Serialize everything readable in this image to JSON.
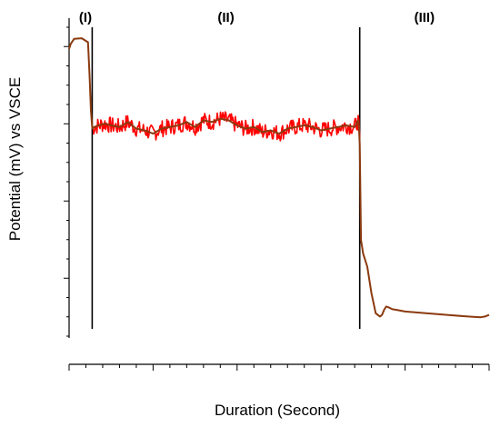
{
  "chart_data": {
    "type": "line",
    "title": "",
    "xlabel": "Duration (Second)",
    "ylabel": "Potential (mV) vs VSCE",
    "tick_labels_shown": false,
    "x_unit": "relative",
    "regions": [
      {
        "label": "(I)",
        "start": 0.0,
        "end": 0.055
      },
      {
        "label": "(II)",
        "start": 0.055,
        "end": 0.692
      },
      {
        "label": "(III)",
        "start": 0.692,
        "end": 1.0
      }
    ],
    "series": [
      {
        "color": "#8b3a0f",
        "noise_color": "#ff0000",
        "x": [
          0.0,
          0.004,
          0.012,
          0.03,
          0.045,
          0.049,
          0.052,
          0.055,
          0.056,
          0.06,
          0.07,
          0.085,
          0.1,
          0.12,
          0.14,
          0.16,
          0.18,
          0.2,
          0.22,
          0.24,
          0.26,
          0.28,
          0.3,
          0.32,
          0.34,
          0.36,
          0.38,
          0.4,
          0.42,
          0.44,
          0.46,
          0.48,
          0.5,
          0.52,
          0.54,
          0.56,
          0.58,
          0.6,
          0.62,
          0.64,
          0.66,
          0.68,
          0.688,
          0.69,
          0.692,
          0.695,
          0.7,
          0.71,
          0.72,
          0.73,
          0.74,
          0.745,
          0.75,
          0.755,
          0.76,
          0.77,
          0.78,
          0.8,
          0.85,
          0.9,
          0.95,
          0.98,
          0.99,
          1.0
        ],
        "y": [
          0.935,
          0.95,
          0.965,
          0.967,
          0.955,
          0.85,
          0.75,
          0.7,
          0.695,
          0.7,
          0.705,
          0.71,
          0.705,
          0.7,
          0.715,
          0.695,
          0.69,
          0.68,
          0.695,
          0.7,
          0.705,
          0.715,
          0.7,
          0.72,
          0.715,
          0.725,
          0.72,
          0.705,
          0.695,
          0.7,
          0.685,
          0.69,
          0.68,
          0.695,
          0.7,
          0.705,
          0.7,
          0.69,
          0.695,
          0.7,
          0.705,
          0.7,
          0.72,
          0.7,
          0.65,
          0.36,
          0.32,
          0.28,
          0.2,
          0.14,
          0.13,
          0.135,
          0.15,
          0.16,
          0.158,
          0.152,
          0.15,
          0.145,
          0.14,
          0.135,
          0.13,
          0.128,
          0.13,
          0.135
        ]
      }
    ],
    "xlim": [
      0,
      1
    ],
    "ylim": [
      0,
      1
    ],
    "grid": false,
    "legend": "none"
  }
}
